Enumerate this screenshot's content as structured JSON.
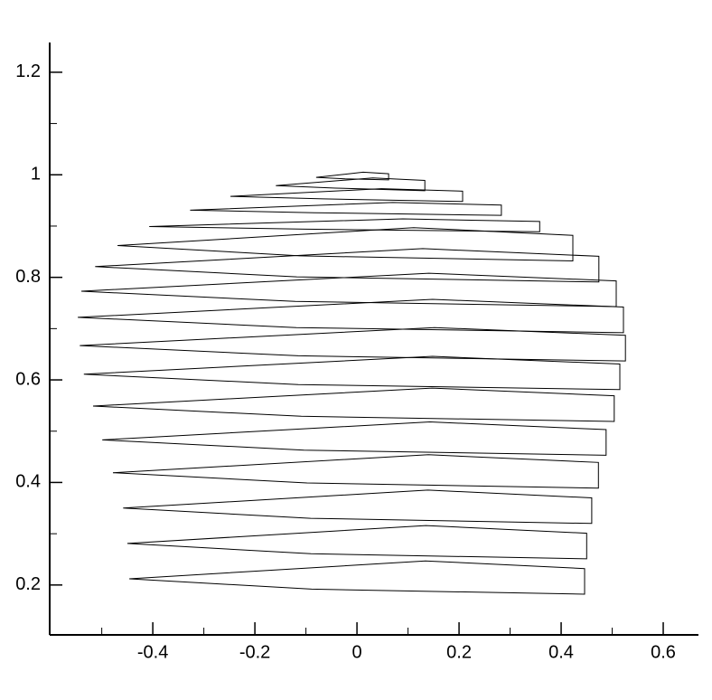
{
  "chart_data": {
    "type": "line",
    "color": "#000000",
    "xlim": [
      -0.602,
      0.669
    ],
    "ylim": [
      0.1027,
      1.258
    ],
    "xticks": [
      -0.4,
      -0.2,
      0,
      0.2,
      0.4,
      0.6
    ],
    "yticks": [
      0.2,
      0.4,
      0.6,
      0.8,
      1,
      1.2
    ],
    "xminorticks": [
      -0.5,
      -0.3,
      -0.1,
      0.1,
      0.3,
      0.5
    ],
    "yminorticks": [
      0.3,
      0.5,
      0.7,
      0.9,
      1.1
    ],
    "series": [
      {
        "x": [
          -0.446,
          0.134,
          0.446,
          0.446,
          -0.089
        ],
        "values": [
          0.212,
          0.247,
          0.232,
          0.182,
          0.192
        ]
      },
      {
        "x": [
          -0.45,
          0.135,
          0.45,
          0.45,
          -0.09
        ],
        "values": [
          0.281,
          0.316,
          0.301,
          0.251,
          0.261
        ]
      },
      {
        "x": [
          -0.458,
          0.139,
          0.46,
          0.46,
          -0.091
        ],
        "values": [
          0.35,
          0.385,
          0.37,
          0.32,
          0.33
        ]
      },
      {
        "x": [
          -0.478,
          0.14,
          0.473,
          0.473,
          -0.098
        ],
        "values": [
          0.419,
          0.454,
          0.439,
          0.389,
          0.399
        ]
      },
      {
        "x": [
          -0.499,
          0.143,
          0.488,
          0.488,
          -0.104
        ],
        "values": [
          0.483,
          0.518,
          0.503,
          0.453,
          0.463
        ]
      },
      {
        "x": [
          -0.517,
          0.147,
          0.504,
          0.504,
          -0.109
        ],
        "values": [
          0.549,
          0.584,
          0.569,
          0.519,
          0.529
        ]
      },
      {
        "x": [
          -0.535,
          0.148,
          0.515,
          0.515,
          -0.115
        ],
        "values": [
          0.611,
          0.646,
          0.631,
          0.581,
          0.591
        ]
      },
      {
        "x": [
          -0.543,
          0.152,
          0.526,
          0.526,
          -0.115
        ],
        "values": [
          0.667,
          0.702,
          0.687,
          0.637,
          0.647
        ]
      },
      {
        "x": [
          -0.547,
          0.148,
          0.522,
          0.522,
          -0.119
        ],
        "values": [
          0.722,
          0.757,
          0.742,
          0.692,
          0.702
        ]
      },
      {
        "x": [
          -0.54,
          0.141,
          0.508,
          0.508,
          -0.121
        ],
        "values": [
          0.773,
          0.808,
          0.793,
          0.743,
          0.753
        ]
      },
      {
        "x": [
          -0.513,
          0.129,
          0.474,
          0.474,
          -0.118
        ],
        "values": [
          0.821,
          0.856,
          0.841,
          0.791,
          0.801
        ]
      },
      {
        "x": [
          -0.469,
          0.111,
          0.423,
          0.423,
          -0.112
        ],
        "values": [
          0.862,
          0.897,
          0.882,
          0.832,
          0.842
        ]
      },
      {
        "x": [
          -0.407,
          0.09,
          0.358,
          0.358,
          -0.101
        ],
        "values": [
          0.899,
          0.914,
          0.909,
          0.889,
          0.894
        ]
      },
      {
        "x": [
          -0.327,
          0.07,
          0.283,
          0.283,
          -0.083
        ],
        "values": [
          0.931,
          0.946,
          0.941,
          0.921,
          0.926
        ]
      },
      {
        "x": [
          -0.248,
          0.048,
          0.207,
          0.207,
          -0.066
        ],
        "values": [
          0.958,
          0.973,
          0.968,
          0.948,
          0.953
        ]
      },
      {
        "x": [
          -0.159,
          0.031,
          0.133,
          0.133,
          -0.042
        ],
        "values": [
          0.979,
          0.994,
          0.989,
          0.969,
          0.974
        ]
      },
      {
        "x": [
          -0.08,
          0.012,
          0.062,
          0.062,
          -0.023
        ],
        "values": [
          0.995,
          1.005,
          1.002,
          0.99,
          0.992
        ]
      }
    ]
  }
}
